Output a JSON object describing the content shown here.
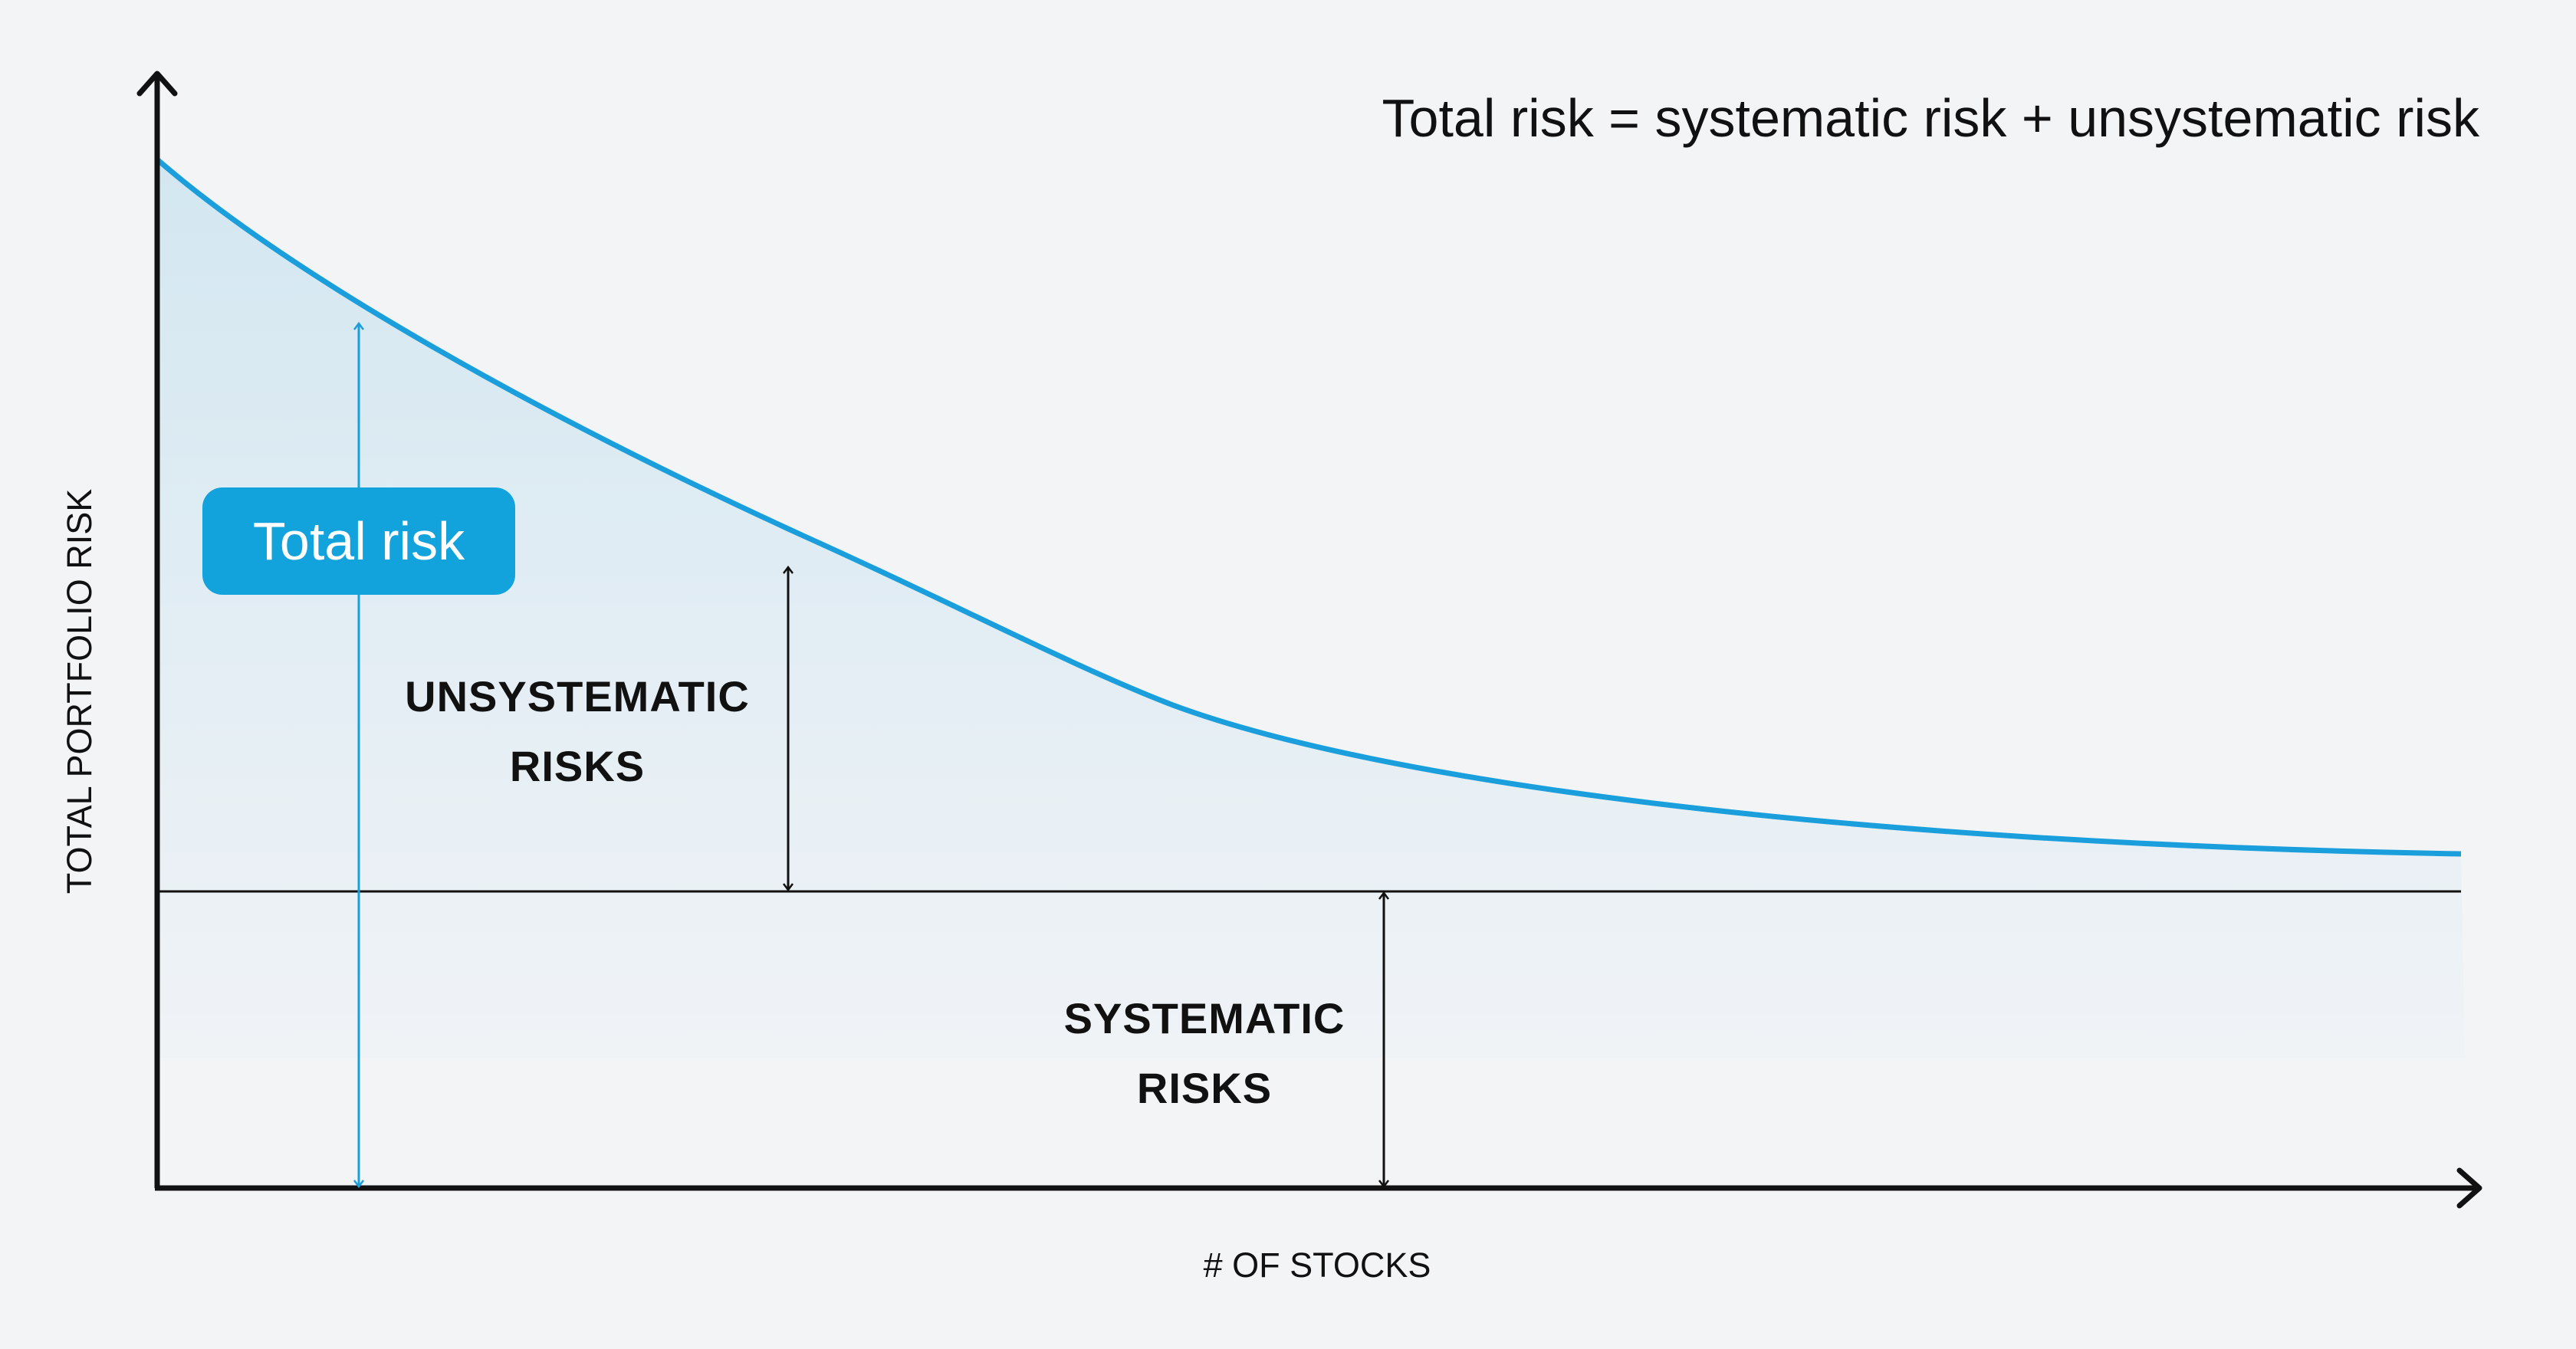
{
  "formula": "Total risk = systematic risk + unsystematic risk",
  "y_axis_label": "TOTAL PORTFOLIO RISK",
  "x_axis_label": "# OF STOCKS",
  "total_risk_badge": "Total risk",
  "unsystematic_label": [
    "UNSYSTEMATIC",
    "RISKS"
  ],
  "systematic_label": [
    "SYSTEMATIC",
    "RISKS"
  ],
  "colors": {
    "background": "#f3f4f6",
    "curve": "#1a9fdc",
    "badge": "#12a3dd",
    "fill_top": "#d5e8f1",
    "axis": "#111111"
  }
}
